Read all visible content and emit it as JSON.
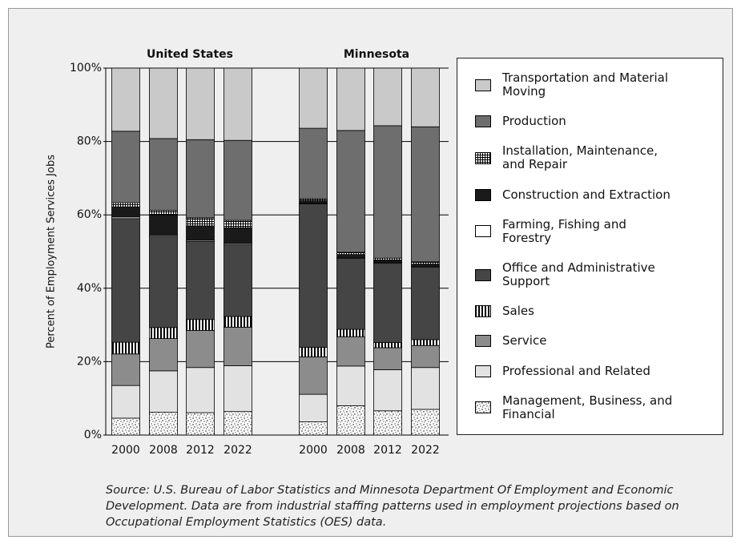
{
  "chart_data": [
    {
      "type": "bar",
      "stacked": true,
      "title": "United States",
      "ylabel": "Percent of Employment Services Jobs",
      "ylim": [
        0,
        100
      ],
      "yticks": [
        {
          "value": 0,
          "label": "0%"
        },
        {
          "value": 20,
          "label": "20%"
        },
        {
          "value": 40,
          "label": "40%"
        },
        {
          "value": 60,
          "label": "60%"
        },
        {
          "value": 80,
          "label": "80%"
        },
        {
          "value": 100,
          "label": "100%"
        }
      ],
      "grid": true,
      "categories": [
        "2000",
        "2008",
        "2012",
        "2022"
      ],
      "series": [
        {
          "name": "Management, Business, and Financial",
          "color": "#ffffff",
          "pattern": "dots",
          "values": [
            4.6,
            6.2,
            6.1,
            6.4
          ]
        },
        {
          "name": "Professional and Related",
          "color": "#e2e2e2",
          "values": [
            8.9,
            11.3,
            12.3,
            12.5
          ]
        },
        {
          "name": "Service",
          "color": "#8c8c8c",
          "values": [
            8.6,
            8.8,
            10.1,
            10.5
          ]
        },
        {
          "name": "Sales",
          "color": "#ffffff",
          "pattern": "vstripes",
          "values": [
            3.2,
            3.0,
            3.0,
            2.9
          ]
        },
        {
          "name": "Office and Administrative Support",
          "color": "#454545",
          "values": [
            33.7,
            24.9,
            21.3,
            19.7
          ]
        },
        {
          "name": "Farming, Fishing and Forestry",
          "color": "#ffffff",
          "values": [
            0.4,
            0.3,
            0.3,
            0.3
          ]
        },
        {
          "name": "Construction and Extraction",
          "color": "#1a1a1a",
          "values": [
            2.8,
            5.5,
            3.9,
            4.2
          ]
        },
        {
          "name": "Installation, Maintenance, and Repair",
          "color": "#ffffff",
          "pattern": "grid",
          "values": [
            1.1,
            1.2,
            2.2,
            2.0
          ]
        },
        {
          "name": "Production",
          "color": "#6e6e6e",
          "values": [
            19.5,
            19.6,
            21.3,
            21.8
          ]
        },
        {
          "name": "Transportation and Material Moving",
          "color": "#c9c9c9",
          "values": [
            17.2,
            19.2,
            19.5,
            19.7
          ]
        }
      ]
    },
    {
      "type": "bar",
      "stacked": true,
      "title": "Minnesota",
      "categories": [
        "2000",
        "2008",
        "2012",
        "2022"
      ],
      "series": [
        {
          "values": [
            3.6,
            8.0,
            6.6,
            7.0
          ]
        },
        {
          "values": [
            7.5,
            10.8,
            11.2,
            11.4
          ]
        },
        {
          "values": [
            10.2,
            8.0,
            6.0,
            6.0
          ]
        },
        {
          "values": [
            2.6,
            2.0,
            1.4,
            1.6
          ]
        },
        {
          "values": [
            39.1,
            19.4,
            21.6,
            19.8
          ]
        },
        {
          "values": [
            0.2,
            0.2,
            0.2,
            0.2
          ]
        },
        {
          "values": [
            0.6,
            0.8,
            0.6,
            0.6
          ]
        },
        {
          "values": [
            0.6,
            0.6,
            0.6,
            0.6
          ]
        },
        {
          "values": [
            19.2,
            33.2,
            36.1,
            36.8
          ]
        },
        {
          "values": [
            16.4,
            17.0,
            15.7,
            16.0
          ]
        }
      ]
    }
  ],
  "source": "Source: U.S. Bureau of Labor Statistics and Minnesota Department Of Employment and Economic Development.  Data are from industrial staffing patterns used in employment projections based on Occupational Employment Statistics (OES) data."
}
